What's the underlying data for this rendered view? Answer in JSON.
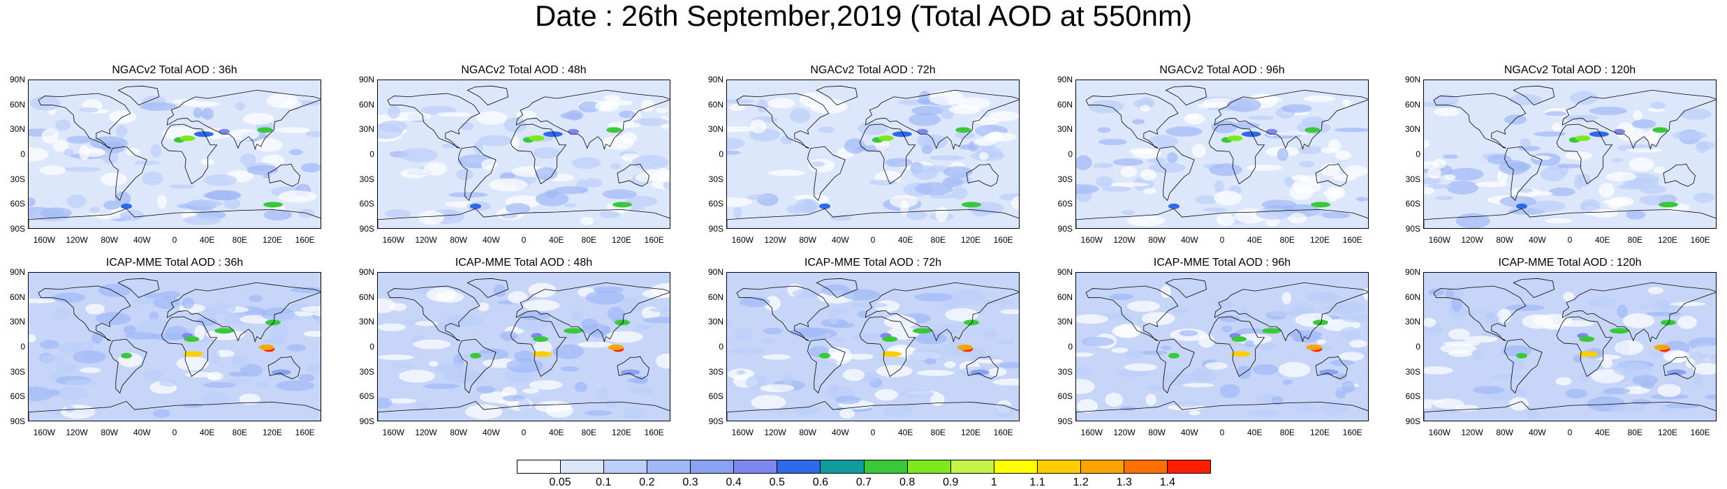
{
  "title": "Date : 26th September,2019 (Total AOD at 550nm)",
  "panels": [
    {
      "title": "NGACv2 Total AOD : 36h",
      "model": "NGACv2",
      "lead": "36h"
    },
    {
      "title": "NGACv2 Total AOD : 48h",
      "model": "NGACv2",
      "lead": "48h"
    },
    {
      "title": "NGACv2 Total AOD : 72h",
      "model": "NGACv2",
      "lead": "72h"
    },
    {
      "title": "NGACv2 Total AOD : 96h",
      "model": "NGACv2",
      "lead": "96h"
    },
    {
      "title": "NGACv2 Total AOD : 120h",
      "model": "NGACv2",
      "lead": "120h"
    },
    {
      "title": "ICAP-MME Total AOD : 36h",
      "model": "ICAP-MME",
      "lead": "36h"
    },
    {
      "title": "ICAP-MME Total AOD : 48h",
      "model": "ICAP-MME",
      "lead": "48h"
    },
    {
      "title": "ICAP-MME Total AOD : 72h",
      "model": "ICAP-MME",
      "lead": "72h"
    },
    {
      "title": "ICAP-MME Total AOD : 96h",
      "model": "ICAP-MME",
      "lead": "96h"
    },
    {
      "title": "ICAP-MME Total AOD : 120h",
      "model": "ICAP-MME",
      "lead": "120h"
    }
  ],
  "lat_labels": [
    "90N",
    "60N",
    "30N",
    "0",
    "30S",
    "60S",
    "90S"
  ],
  "lon_labels": [
    "160W",
    "120W",
    "80W",
    "40W",
    "0",
    "40E",
    "80E",
    "120E",
    "160E"
  ],
  "colorbar": {
    "labels": [
      "0.05",
      "0.1",
      "0.2",
      "0.3",
      "0.4",
      "0.5",
      "0.6",
      "0.7",
      "0.8",
      "0.9",
      "1",
      "1.1",
      "1.2",
      "1.3",
      "1.4"
    ],
    "colors": [
      "#ffffff",
      "#dce6fb",
      "#bccffa",
      "#9fb8f6",
      "#8aa2f3",
      "#7f86f0",
      "#2e6ae8",
      "#109c9c",
      "#38c83a",
      "#7ee81e",
      "#c4f34a",
      "#ffff00",
      "#ffce00",
      "#ffa300",
      "#ff7000",
      "#ff1e00"
    ]
  }
}
